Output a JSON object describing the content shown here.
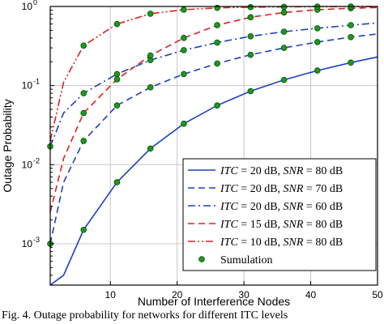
{
  "chart_data": {
    "type": "line",
    "xlabel": "Number of Interference Nodes",
    "ylabel": "Outage Probability",
    "xlim": [
      1,
      50
    ],
    "ylim": [
      0.0003,
      1
    ],
    "yscale": "log",
    "grid": true,
    "legend_position": "bottom-right",
    "x_ticks": [
      10,
      20,
      30,
      40,
      50
    ],
    "x_tick_labels": [
      "10",
      "20",
      "30",
      "40",
      "50"
    ],
    "y_ticks": [
      0.001,
      0.01,
      0.1,
      1
    ],
    "y_tick_labels": [
      {
        "base": "10",
        "exp": "-3"
      },
      {
        "base": "10",
        "exp": "-2"
      },
      {
        "base": "10",
        "exp": "-1"
      },
      {
        "base": "10",
        "exp": "0"
      }
    ],
    "series": [
      {
        "name": "ITC = 20 dB, SNR = 80 dB",
        "label_parts": [
          [
            "ITC",
            "i"
          ],
          [
            " = 20 dB, ",
            "n"
          ],
          [
            "SNR",
            "i"
          ],
          [
            " = 80 dB",
            "n"
          ]
        ],
        "color": "#1f3fbf",
        "dash": "solid",
        "x": [
          1,
          3,
          6,
          11,
          16,
          21,
          26,
          31,
          36,
          41,
          46,
          50
        ],
        "y": [
          0.0003,
          0.0004,
          0.0015,
          0.006,
          0.016,
          0.033,
          0.056,
          0.085,
          0.118,
          0.155,
          0.195,
          0.23
        ]
      },
      {
        "name": "ITC = 20 dB, SNR = 70 dB",
        "label_parts": [
          [
            "ITC",
            "i"
          ],
          [
            " = 20 dB, ",
            "n"
          ],
          [
            "SNR",
            "i"
          ],
          [
            " = 70 dB",
            "n"
          ]
        ],
        "color": "#1f3fbf",
        "dash": "dashed",
        "x": [
          1,
          3,
          6,
          11,
          16,
          21,
          26,
          31,
          36,
          41,
          46,
          50
        ],
        "y": [
          0.001,
          0.006,
          0.02,
          0.056,
          0.095,
          0.14,
          0.19,
          0.245,
          0.3,
          0.355,
          0.41,
          0.45
        ]
      },
      {
        "name": "ITC = 20 dB, SNR = 60 dB",
        "label_parts": [
          [
            "ITC",
            "i"
          ],
          [
            " = 20 dB, ",
            "n"
          ],
          [
            "SNR",
            "i"
          ],
          [
            " = 60 dB",
            "n"
          ]
        ],
        "color": "#1f3fbf",
        "dash": "dashdot",
        "x": [
          1,
          3,
          6,
          11,
          16,
          21,
          26,
          31,
          36,
          41,
          46,
          50
        ],
        "y": [
          0.017,
          0.045,
          0.08,
          0.14,
          0.21,
          0.28,
          0.35,
          0.42,
          0.48,
          0.53,
          0.58,
          0.62
        ]
      },
      {
        "name": "ITC = 15 dB, SNR = 80 dB",
        "label_parts": [
          [
            "ITC",
            "i"
          ],
          [
            " = 15 dB, ",
            "n"
          ],
          [
            "SNR",
            "i"
          ],
          [
            " = 80 dB",
            "n"
          ]
        ],
        "color": "#e02020",
        "dash": "dashed",
        "x": [
          1,
          3,
          6,
          11,
          16,
          21,
          26,
          31,
          36,
          41,
          46,
          50
        ],
        "y": [
          0.0025,
          0.012,
          0.045,
          0.12,
          0.24,
          0.4,
          0.58,
          0.73,
          0.84,
          0.91,
          0.95,
          0.97
        ]
      },
      {
        "name": "ITC = 10 dB, SNR = 80 dB",
        "label_parts": [
          [
            "ITC",
            "i"
          ],
          [
            " = 10 dB, ",
            "n"
          ],
          [
            "SNR",
            "i"
          ],
          [
            " = 80 dB",
            "n"
          ]
        ],
        "color": "#e02020",
        "dash": "dashdotdot",
        "x": [
          1,
          3,
          6,
          11,
          16,
          21,
          26,
          31,
          36,
          41,
          46,
          50
        ],
        "y": [
          0.02,
          0.11,
          0.32,
          0.6,
          0.81,
          0.91,
          0.96,
          0.98,
          0.99,
          0.995,
          0.998,
          0.999
        ]
      }
    ],
    "simulation": {
      "name": "Sumulation",
      "color": "#1a9a1a",
      "edge_color": "#0d4d0d",
      "points": [
        {
          "series": 0,
          "x": [
            6,
            11,
            16,
            21,
            26,
            31,
            36,
            41,
            46
          ],
          "y": [
            0.0015,
            0.006,
            0.016,
            0.033,
            0.056,
            0.085,
            0.118,
            0.155,
            0.195
          ]
        },
        {
          "series": 1,
          "x": [
            1,
            6,
            11,
            16,
            21,
            26,
            31,
            36,
            41,
            46
          ],
          "y": [
            0.001,
            0.02,
            0.056,
            0.095,
            0.14,
            0.19,
            0.245,
            0.3,
            0.355,
            0.41
          ]
        },
        {
          "series": 2,
          "x": [
            1,
            6,
            11,
            16,
            21,
            26,
            31,
            36,
            41,
            46
          ],
          "y": [
            0.017,
            0.08,
            0.14,
            0.21,
            0.28,
            0.35,
            0.42,
            0.48,
            0.53,
            0.58
          ]
        },
        {
          "series": 3,
          "x": [
            6,
            11,
            16,
            21,
            26,
            31,
            36,
            41,
            46
          ],
          "y": [
            0.045,
            0.12,
            0.24,
            0.4,
            0.58,
            0.73,
            0.84,
            0.91,
            0.95
          ]
        },
        {
          "series": 4,
          "x": [
            6,
            11,
            16,
            21,
            26,
            31,
            36,
            41,
            46
          ],
          "y": [
            0.32,
            0.6,
            0.81,
            0.91,
            0.96,
            0.98,
            0.99,
            0.995,
            0.998
          ]
        }
      ]
    }
  },
  "caption": "Fig. 4.  Outage probability for networks for different ITC levels"
}
